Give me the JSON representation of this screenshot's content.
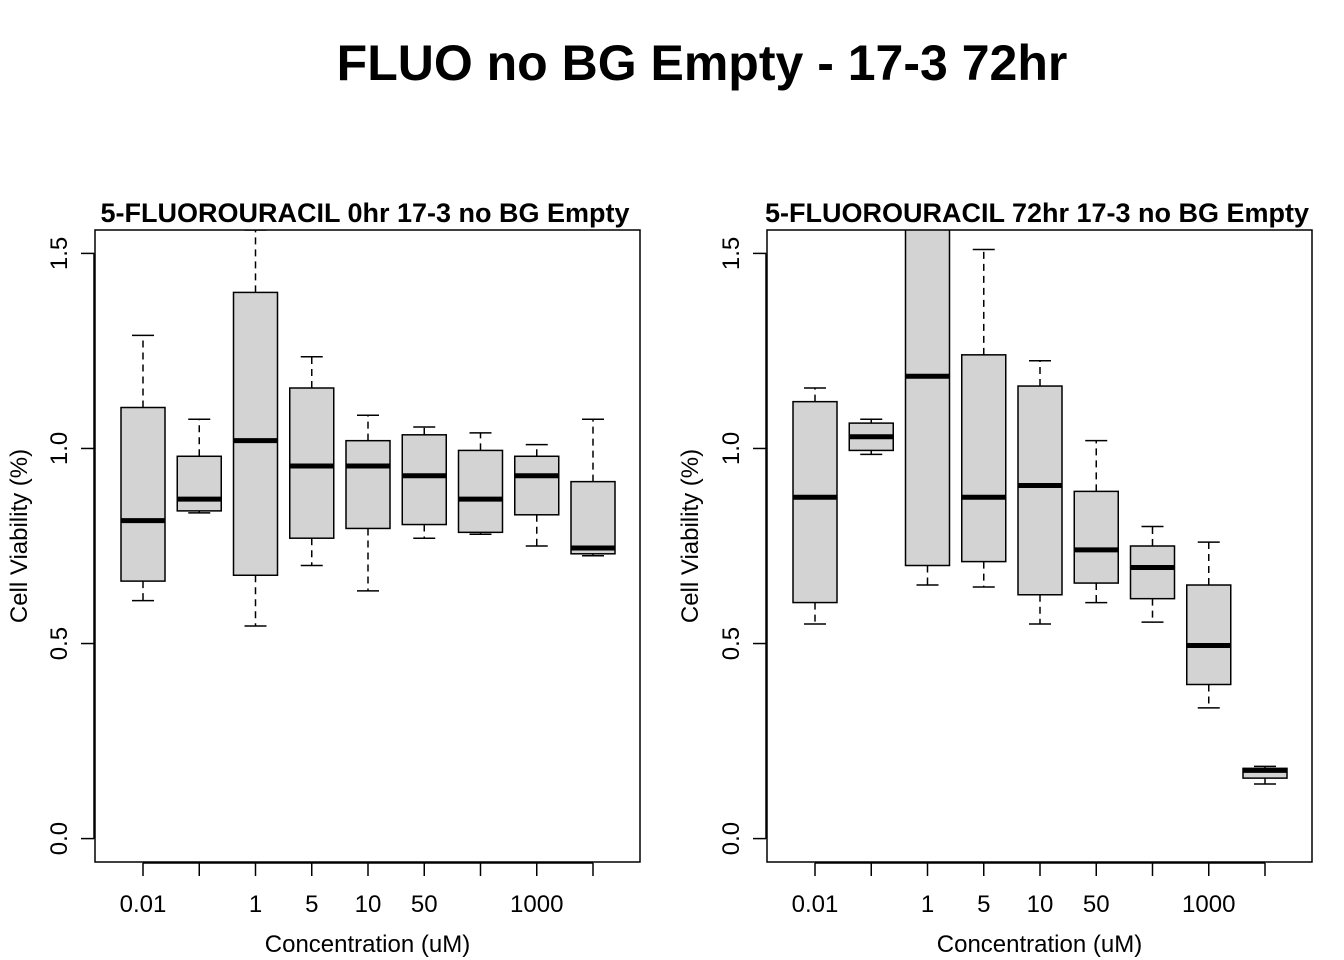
{
  "title": "FLUO no BG Empty - 17-3 72hr",
  "colors": {
    "box_fill": "#d3d3d3",
    "stroke": "#000000",
    "background": "#ffffff"
  },
  "chart_data": [
    {
      "type": "boxplot",
      "title": "5-FLUOROURACIL 0hr 17-3 no BG Empty",
      "xlabel": "Concentration (uM)",
      "ylabel": "Cell Viability (%)",
      "ylim": [
        -0.06,
        1.56
      ],
      "yticks": [
        "0.0",
        "0.5",
        "1.0",
        "1.5"
      ],
      "grid": false,
      "categories": [
        "0.01",
        "",
        "1",
        "5",
        "10",
        "50",
        "",
        "1000",
        ""
      ],
      "boxes": [
        {
          "whisker_low": 0.61,
          "q1": 0.66,
          "median": 0.815,
          "q3": 1.105,
          "whisker_high": 1.29
        },
        {
          "whisker_low": 0.835,
          "q1": 0.84,
          "median": 0.87,
          "q3": 0.98,
          "whisker_high": 1.075
        },
        {
          "whisker_low": 0.545,
          "q1": 0.675,
          "median": 1.02,
          "q3": 1.4,
          "whisker_high": 1.56
        },
        {
          "whisker_low": 0.7,
          "q1": 0.77,
          "median": 0.955,
          "q3": 1.155,
          "whisker_high": 1.235
        },
        {
          "whisker_low": 0.635,
          "q1": 0.795,
          "median": 0.955,
          "q3": 1.02,
          "whisker_high": 1.085
        },
        {
          "whisker_low": 0.77,
          "q1": 0.805,
          "median": 0.93,
          "q3": 1.035,
          "whisker_high": 1.055
        },
        {
          "whisker_low": 0.78,
          "q1": 0.785,
          "median": 0.87,
          "q3": 0.995,
          "whisker_high": 1.04
        },
        {
          "whisker_low": 0.75,
          "q1": 0.83,
          "median": 0.93,
          "q3": 0.98,
          "whisker_high": 1.01
        },
        {
          "whisker_low": 0.725,
          "q1": 0.73,
          "median": 0.745,
          "q3": 0.915,
          "whisker_high": 1.075
        }
      ]
    },
    {
      "type": "boxplot",
      "title": "5-FLUOROURACIL 72hr 17-3 no BG Empty",
      "xlabel": "Concentration (uM)",
      "ylabel": "Cell Viability (%)",
      "ylim": [
        -0.06,
        1.56
      ],
      "yticks": [
        "0.0",
        "0.5",
        "1.0",
        "1.5"
      ],
      "grid": false,
      "categories": [
        "0.01",
        "",
        "1",
        "5",
        "10",
        "50",
        "",
        "1000",
        ""
      ],
      "boxes": [
        {
          "whisker_low": 0.55,
          "q1": 0.605,
          "median": 0.875,
          "q3": 1.12,
          "whisker_high": 1.155
        },
        {
          "whisker_low": 0.985,
          "q1": 0.995,
          "median": 1.03,
          "q3": 1.065,
          "whisker_high": 1.075
        },
        {
          "whisker_low": 0.65,
          "q1": 0.7,
          "median": 1.185,
          "q3": 1.56,
          "whisker_high": 1.56
        },
        {
          "whisker_low": 0.645,
          "q1": 0.71,
          "median": 0.875,
          "q3": 1.24,
          "whisker_high": 1.51
        },
        {
          "whisker_low": 0.55,
          "q1": 0.625,
          "median": 0.905,
          "q3": 1.16,
          "whisker_high": 1.225
        },
        {
          "whisker_low": 0.605,
          "q1": 0.655,
          "median": 0.74,
          "q3": 0.89,
          "whisker_high": 1.02
        },
        {
          "whisker_low": 0.555,
          "q1": 0.615,
          "median": 0.695,
          "q3": 0.75,
          "whisker_high": 0.8
        },
        {
          "whisker_low": 0.335,
          "q1": 0.395,
          "median": 0.495,
          "q3": 0.65,
          "whisker_high": 0.76
        },
        {
          "whisker_low": 0.14,
          "q1": 0.155,
          "median": 0.175,
          "q3": 0.18,
          "whisker_high": 0.185
        }
      ]
    }
  ]
}
